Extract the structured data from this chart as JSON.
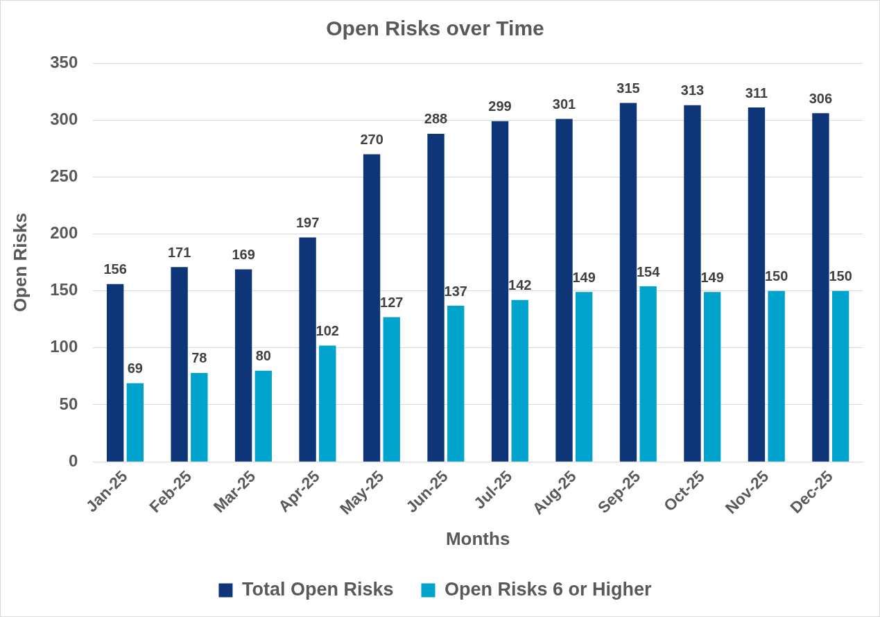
{
  "chart_data": {
    "type": "bar",
    "title": "Open Risks over Time",
    "xlabel": "Months",
    "ylabel": "Open Risks",
    "categories": [
      "Jan-25",
      "Feb-25",
      "Mar-25",
      "Apr-25",
      "May-25",
      "Jun-25",
      "Jul-25",
      "Aug-25",
      "Sep-25",
      "Oct-25",
      "Nov-25",
      "Dec-25"
    ],
    "series": [
      {
        "name": "Total Open Risks",
        "color": "#0e3578",
        "values": [
          156,
          171,
          169,
          197,
          270,
          288,
          299,
          301,
          315,
          313,
          311,
          306
        ]
      },
      {
        "name": "Open Risks 6 or Higher",
        "color": "#00a3cc",
        "values": [
          69,
          78,
          80,
          102,
          127,
          137,
          142,
          149,
          154,
          149,
          150,
          150
        ]
      }
    ],
    "ylim": [
      0,
      350
    ],
    "yticks": [
      0,
      50,
      100,
      150,
      200,
      250,
      300,
      350
    ],
    "grid": "y",
    "legend": "bottom",
    "data_labels": true
  }
}
